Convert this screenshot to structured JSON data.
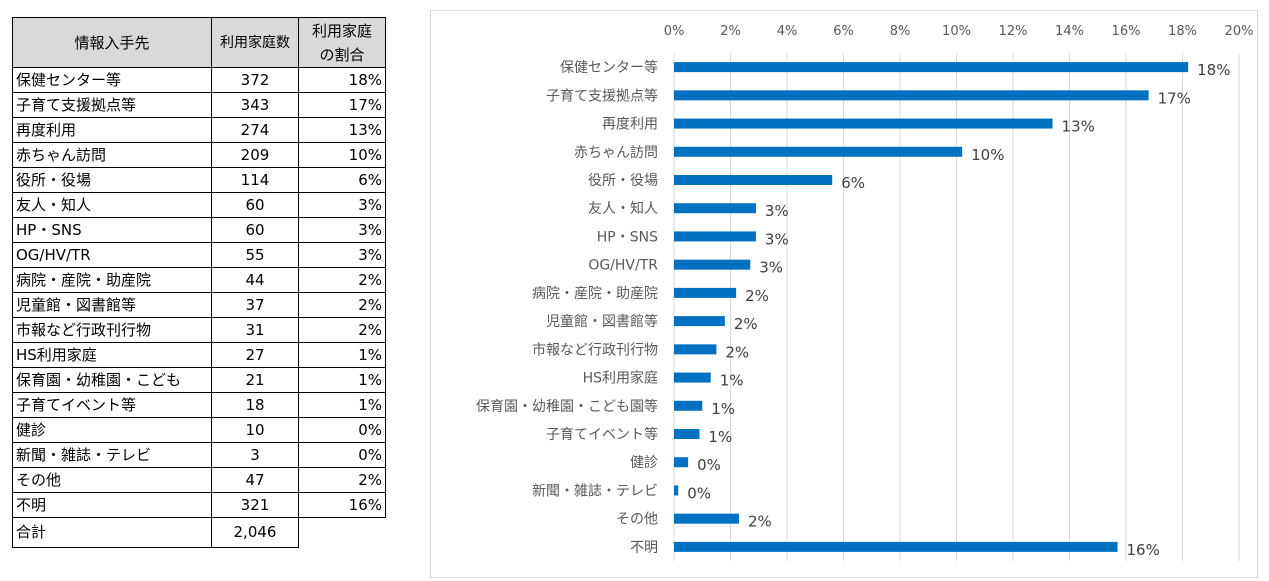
{
  "table": {
    "headers": {
      "source": "情報入手先",
      "count": "利用家庭数",
      "ratio_line1": "利用家庭",
      "ratio_line2": "の割合"
    },
    "rows": [
      {
        "source": "保健センター等",
        "count": "372",
        "ratio": "18%"
      },
      {
        "source": "子育て支援拠点等",
        "count": "343",
        "ratio": "17%"
      },
      {
        "source": "再度利用",
        "count": "274",
        "ratio": "13%"
      },
      {
        "source": "赤ちゃん訪問",
        "count": "209",
        "ratio": "10%"
      },
      {
        "source": "役所・役場",
        "count": "114",
        "ratio": "6%"
      },
      {
        "source": "友人・知人",
        "count": "60",
        "ratio": "3%"
      },
      {
        "source": "HP・SNS",
        "count": "60",
        "ratio": "3%"
      },
      {
        "source": "OG/HV/TR",
        "count": "55",
        "ratio": "3%"
      },
      {
        "source": "病院・産院・助産院",
        "count": "44",
        "ratio": "2%"
      },
      {
        "source": "児童館・図書館等",
        "count": "37",
        "ratio": "2%"
      },
      {
        "source": "市報など行政刊行物",
        "count": "31",
        "ratio": "2%"
      },
      {
        "source": "HS利用家庭",
        "count": "27",
        "ratio": "1%"
      },
      {
        "source": "保育園・幼稚園・こども",
        "count": "21",
        "ratio": "1%"
      },
      {
        "source": "子育てイベント等",
        "count": "18",
        "ratio": "1%"
      },
      {
        "source": "健診",
        "count": "10",
        "ratio": "0%"
      },
      {
        "source": "新聞・雑誌・テレビ",
        "count": "3",
        "ratio": "0%"
      },
      {
        "source": "その他",
        "count": "47",
        "ratio": "2%"
      },
      {
        "source": "不明",
        "count": "321",
        "ratio": "16%"
      }
    ],
    "total": {
      "label": "合計",
      "count": "2,046"
    }
  },
  "chart_data": {
    "type": "bar",
    "orientation": "horizontal",
    "categories": [
      "保健センター等",
      "子育て支援拠点等",
      "再度利用",
      "赤ちゃん訪問",
      "役所・役場",
      "友人・知人",
      "HP・SNS",
      "OG/HV/TR",
      "病院・産院・助産院",
      "児童館・図書館等",
      "市報など行政刊行物",
      "HS利用家庭",
      "保育園・幼稚園・こども園等",
      "子育てイベント等",
      "健診",
      "新聞・雑誌・テレビ",
      "その他",
      "不明"
    ],
    "values": [
      18.2,
      16.8,
      13.4,
      10.2,
      5.6,
      2.9,
      2.9,
      2.7,
      2.2,
      1.8,
      1.5,
      1.3,
      1.0,
      0.9,
      0.5,
      0.15,
      2.3,
      15.7
    ],
    "data_labels": [
      "18%",
      "17%",
      "13%",
      "10%",
      "6%",
      "3%",
      "3%",
      "3%",
      "2%",
      "2%",
      "2%",
      "1%",
      "1%",
      "1%",
      "0%",
      "0%",
      "2%",
      "16%"
    ],
    "xlim": [
      0,
      20
    ],
    "xticks": [
      "0%",
      "2%",
      "4%",
      "6%",
      "8%",
      "10%",
      "12%",
      "14%",
      "16%",
      "18%",
      "20%"
    ],
    "axis_position": "top",
    "grid": true,
    "bar_color": "#0070C0",
    "grid_color": "#d9d9d9",
    "title": "",
    "xlabel": "",
    "ylabel": ""
  }
}
